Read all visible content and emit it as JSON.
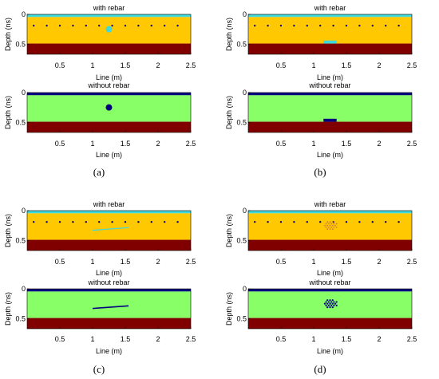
{
  "axis": {
    "ylabel": "Depth (ns)",
    "xlabel": "Line (m)",
    "x_ticks": [
      "0.5",
      "1",
      "1.5",
      "2",
      "2.5"
    ],
    "x_tick_values": [
      0.5,
      1,
      1.5,
      2,
      2.5
    ],
    "xlim": [
      0,
      2.5
    ],
    "y_ticks": [
      "0",
      "0.5"
    ],
    "y_tick_values": [
      0,
      0.5
    ],
    "ylim": [
      0,
      0.67
    ]
  },
  "colors": {
    "water_cyan": "#3fd8dc",
    "concrete_yellow": "#ffc800",
    "soil_darkred": "#800000",
    "no_rebar_green": "#88ff66",
    "surface_navy": "#000080",
    "rebar_marker": "#000080",
    "target_cyan": "#3fd8dc",
    "target_navy": "#000080"
  },
  "rebar_x": [
    0.1,
    0.3,
    0.5,
    0.7,
    0.9,
    1.1,
    1.3,
    1.5,
    1.7,
    1.9,
    2.1,
    2.3
  ],
  "panels": [
    {
      "id": "a",
      "caption": "(a)",
      "with_title": "with rebar",
      "without_title": "without rebar",
      "target": {
        "type": "circle",
        "x": 1.25,
        "depth": 0.25,
        "radius": 0.07
      }
    },
    {
      "id": "b",
      "caption": "(b)",
      "with_title": "with rebar",
      "without_title": "without rebar",
      "target": {
        "type": "block",
        "x0": 1.15,
        "x1": 1.35,
        "depth0": 0.44,
        "depth1": 0.49
      }
    },
    {
      "id": "c",
      "caption": "(c)",
      "with_title": "with rebar",
      "without_title": "without rebar",
      "target": {
        "type": "line",
        "x0": 1.0,
        "depth0": 0.33,
        "x1": 1.55,
        "depth1": 0.285
      }
    },
    {
      "id": "d",
      "caption": "(d)",
      "with_title": "with rebar",
      "without_title": "without rebar",
      "target": {
        "type": "cluster",
        "x": 1.25,
        "depth": 0.25,
        "spread_x": 0.08,
        "spread_depth": 0.06
      }
    }
  ]
}
